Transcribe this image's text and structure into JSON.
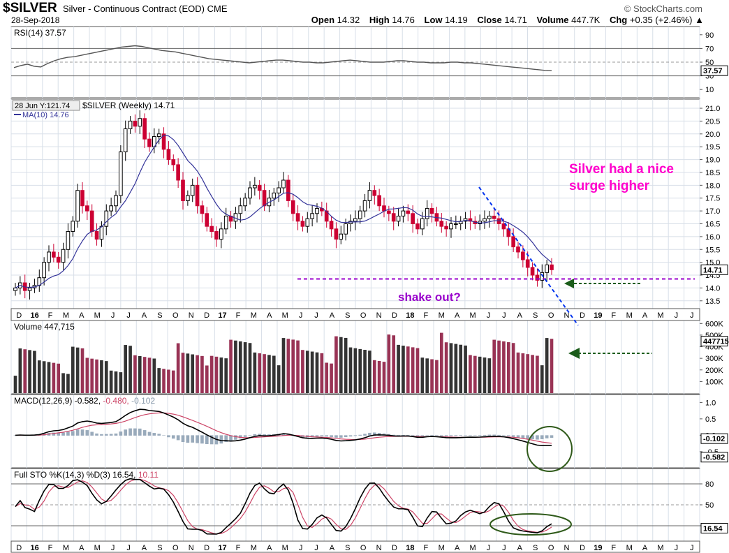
{
  "header": {
    "symbol": "$SILVER",
    "name": "Silver - Continuous Contract (EOD)",
    "exchange": "CME",
    "brand": "© StockCharts.com",
    "date": "28-Sep-2018",
    "open_label": "Open",
    "open": "14.32",
    "high_label": "High",
    "high": "14.76",
    "low_label": "Low",
    "low": "14.19",
    "close_label": "Close",
    "close": "14.71",
    "volume_label": "Volume",
    "volume": "447.7K",
    "chg_label": "Chg",
    "chg": "+0.35 (+2.46%)",
    "chg_arrow": "▲"
  },
  "annotations": {
    "surge_line1": "Silver had a nice",
    "surge_line2": "surge higher",
    "shake": "shake out?"
  },
  "colors": {
    "up": "#000000",
    "down": "#cc0033",
    "vol_down": "#993355",
    "vol_up": "#333333",
    "ma": "#333399",
    "annotation": "#ff00cc",
    "support": "#9900cc",
    "trend": "#0033ee",
    "arrow": "#1a5c1a",
    "circle": "#2f5a1a",
    "signal": "#cc4466",
    "hist": "#99aabb"
  },
  "chart_data": [
    {
      "panel": "rsi",
      "type": "line",
      "title": "RSI(14) 37.57",
      "last_label": "37.57",
      "y_ticks": [
        "90",
        "70",
        "50",
        "30",
        "10"
      ],
      "ylim": [
        0,
        100
      ],
      "levels": [
        70,
        30
      ],
      "values": [
        42,
        45,
        47,
        44,
        43,
        48,
        52,
        55,
        57,
        58,
        60,
        62,
        64,
        66,
        68,
        70,
        72,
        73,
        74,
        73,
        71,
        69,
        67,
        66,
        65,
        63,
        61,
        59,
        57,
        55,
        54,
        53,
        52,
        51,
        50,
        49,
        50,
        51,
        52,
        53,
        53,
        52,
        51,
        50,
        50,
        49,
        49,
        50,
        51,
        52,
        53,
        52,
        51,
        50,
        50,
        50,
        51,
        52,
        52,
        51,
        50,
        50,
        49,
        49,
        49,
        50,
        50,
        49,
        49,
        48,
        47,
        46,
        45,
        44,
        43,
        42,
        41,
        40,
        39,
        38,
        37.57
      ]
    },
    {
      "panel": "price",
      "type": "candlestick",
      "title_prefix": "28 Jun Y:121.74",
      "title": "$SILVER (Weekly) 14.71",
      "ma_label": "MA(10) 14.76",
      "last_label": "14.71",
      "y_ticks": [
        "21.0",
        "20.5",
        "20.0",
        "19.5",
        "19.0",
        "18.5",
        "18.0",
        "17.5",
        "17.0",
        "16.5",
        "16.0",
        "15.5",
        "15.0",
        "14.5",
        "14.0",
        "13.5"
      ],
      "ylim": [
        13.25,
        21.3
      ],
      "support_level": 14.35,
      "candles_close": [
        14.0,
        14.2,
        13.9,
        14.0,
        14.1,
        14.4,
        15.0,
        15.4,
        15.2,
        15.0,
        15.5,
        16.2,
        16.6,
        17.8,
        17.2,
        17.0,
        16.2,
        15.9,
        16.4,
        17.0,
        17.2,
        17.6,
        19.3,
        20.2,
        20.5,
        20.3,
        20.6,
        19.8,
        19.5,
        19.9,
        20.0,
        19.4,
        19.0,
        18.8,
        18.2,
        17.4,
        17.6,
        18.0,
        17.2,
        16.9,
        16.4,
        16.2,
        15.9,
        16.3,
        16.8,
        16.6,
        16.9,
        17.2,
        17.5,
        17.9,
        18.0,
        17.8,
        17.2,
        17.5,
        17.7,
        17.9,
        18.2,
        17.4,
        16.9,
        16.6,
        16.4,
        16.7,
        16.9,
        17.1,
        17.0,
        16.6,
        16.3,
        15.9,
        16.1,
        16.5,
        16.6,
        16.7,
        17.0,
        17.4,
        17.8,
        17.6,
        17.2,
        17.0,
        16.9,
        16.6,
        16.8,
        17.0,
        16.9,
        16.5,
        16.3,
        16.7,
        17.1,
        16.9,
        16.6,
        16.4,
        16.3,
        16.5,
        16.5,
        16.6,
        16.7,
        16.6,
        16.5,
        16.6,
        16.7,
        16.8,
        16.7,
        16.5,
        16.3,
        16.0,
        15.6,
        15.4,
        15.1,
        14.8,
        14.5,
        14.3,
        14.6,
        14.9,
        14.71
      ]
    },
    {
      "panel": "volume",
      "type": "bar",
      "title": "Volume 447,715",
      "last_label": "447715",
      "y_ticks": [
        "600K",
        "500K",
        "400K",
        "300K",
        "200K",
        "100K"
      ],
      "ylim": [
        0,
        620000
      ]
    },
    {
      "panel": "macd",
      "type": "line",
      "title": "MACD(12,26,9) -0.582, -0.480, -0.102",
      "title_macd": "MACD(12,26,9) -0.582,",
      "title_signal": "-0.480,",
      "title_hist": "-0.102",
      "last_label_1": "-0.102",
      "last_label_2": "-0.582",
      "y_ticks": [
        "1.0",
        "0.5",
        "0.0",
        "-0.5"
      ],
      "ylim": [
        -0.95,
        1.2
      ]
    },
    {
      "panel": "sto",
      "type": "line",
      "title": "Full STO %K(14,3) %D(3) 16.54, 10.11",
      "title_k": "Full STO %K(14,3) %D(3) 16.54,",
      "title_d": "10.11",
      "last_label": "16.54",
      "y_ticks": [
        "80",
        "50",
        "20"
      ],
      "ylim": [
        0,
        100
      ],
      "levels": [
        80,
        20
      ]
    },
    {
      "panel": "x-axis",
      "months": [
        "D",
        "16",
        "F",
        "M",
        "A",
        "M",
        "J",
        "J",
        "A",
        "S",
        "O",
        "N",
        "D",
        "17",
        "F",
        "M",
        "A",
        "M",
        "J",
        "J",
        "A",
        "S",
        "O",
        "N",
        "D",
        "18",
        "F",
        "M",
        "A",
        "M",
        "J",
        "J",
        "A",
        "S",
        "O",
        "N",
        "D",
        "19",
        "F",
        "M",
        "A",
        "M",
        "J",
        "J"
      ]
    }
  ]
}
